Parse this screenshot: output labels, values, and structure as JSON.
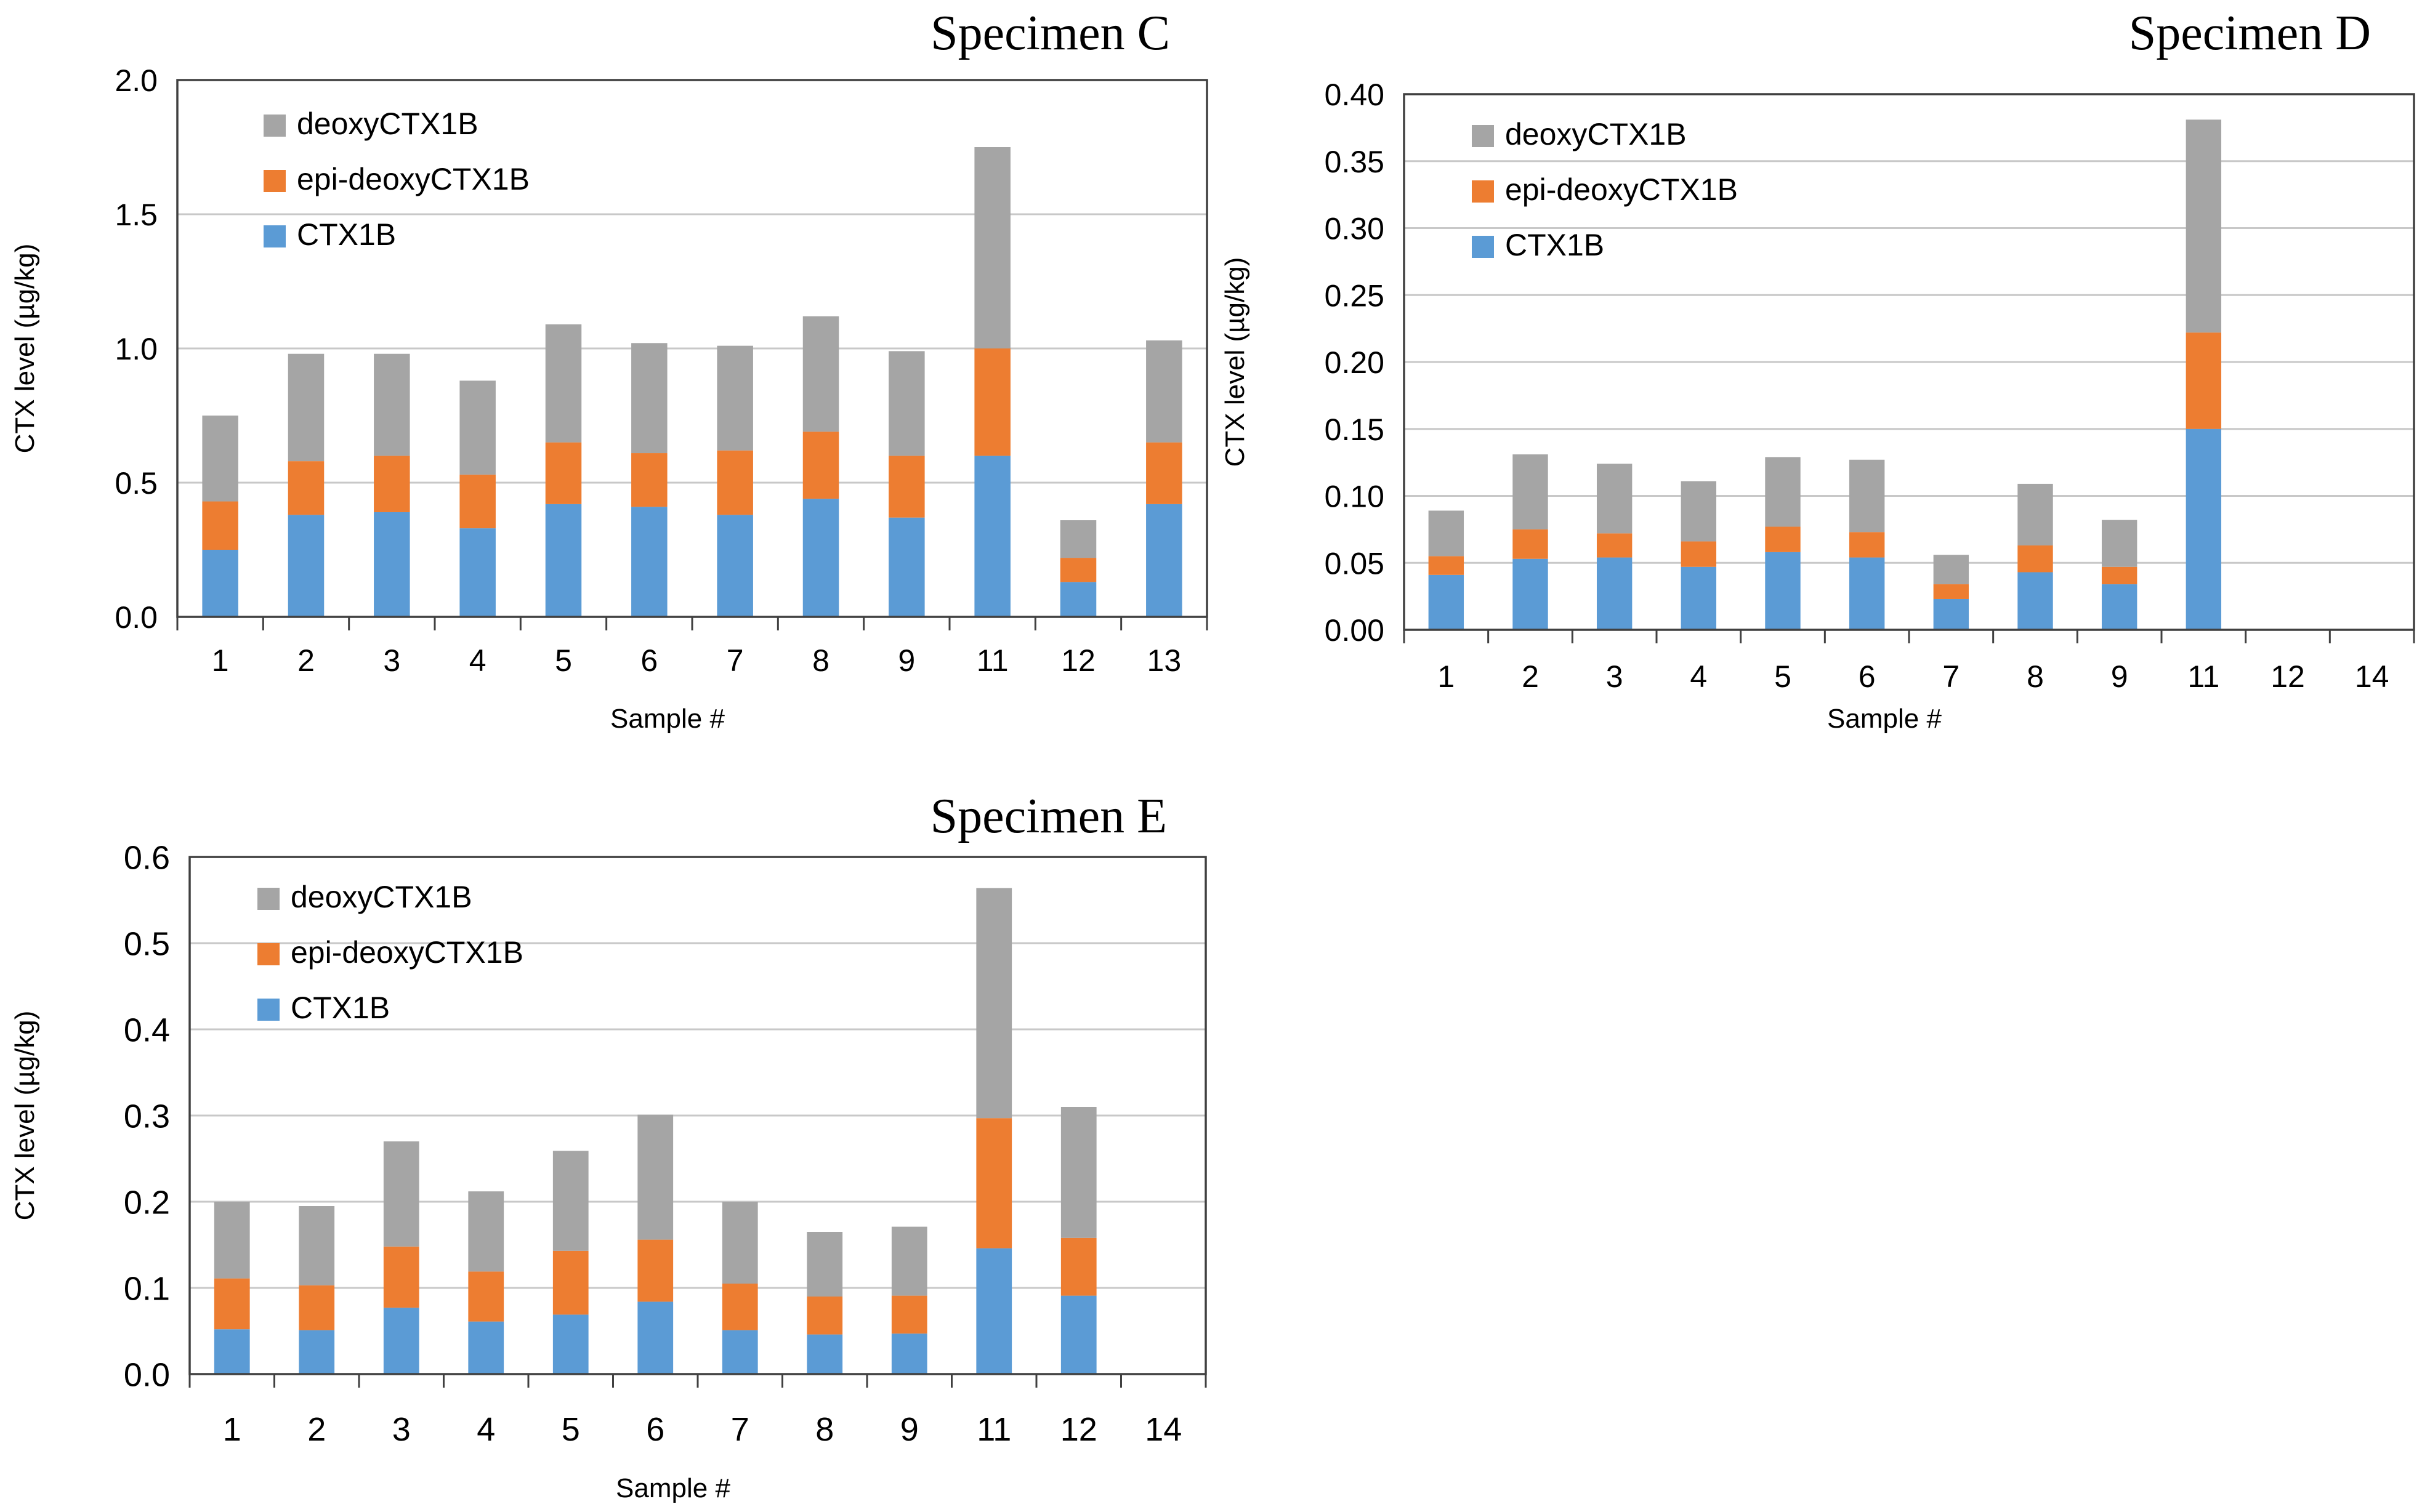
{
  "series_colors": {
    "CTX1B": "#5b9bd5",
    "epi-deoxyCTX1B": "#ed7d31",
    "deoxyCTX1B": "#a5a5a5"
  },
  "chart_data": [
    {
      "type": "bar",
      "stacked": true,
      "title": "Specimen C",
      "xlabel": "Sample #",
      "ylabel": "CTX level (µg/kg)",
      "ylim": [
        0,
        2.0
      ],
      "yticks": [
        "0.0",
        "0.5",
        "1.0",
        "1.5",
        "2.0"
      ],
      "grid": true,
      "legend": [
        "deoxyCTX1B",
        "epi-deoxyCTX1B",
        "CTX1B"
      ],
      "legend_position": "top-left",
      "categories": [
        "1",
        "2",
        "3",
        "4",
        "5",
        "6",
        "7",
        "8",
        "9",
        "11",
        "12",
        "13"
      ],
      "series": [
        {
          "name": "CTX1B",
          "values": [
            0.25,
            0.38,
            0.39,
            0.33,
            0.42,
            0.41,
            0.38,
            0.44,
            0.37,
            0.6,
            0.13,
            0.42
          ]
        },
        {
          "name": "epi-deoxyCTX1B",
          "values": [
            0.18,
            0.2,
            0.21,
            0.2,
            0.23,
            0.2,
            0.24,
            0.25,
            0.23,
            0.4,
            0.09,
            0.23
          ]
        },
        {
          "name": "deoxyCTX1B",
          "values": [
            0.32,
            0.4,
            0.38,
            0.35,
            0.44,
            0.41,
            0.39,
            0.43,
            0.39,
            0.75,
            0.14,
            0.38
          ]
        }
      ]
    },
    {
      "type": "bar",
      "stacked": true,
      "title": "Specimen D",
      "xlabel": "Sample #",
      "ylabel": "CTX level (µg/kg)",
      "ylim": [
        0,
        0.4
      ],
      "yticks": [
        "0.00",
        "0.05",
        "0.10",
        "0.15",
        "0.20",
        "0.25",
        "0.30",
        "0.35",
        "0.40"
      ],
      "grid": true,
      "legend": [
        "deoxyCTX1B",
        "epi-deoxyCTX1B",
        "CTX1B"
      ],
      "legend_position": "top-left",
      "categories": [
        "1",
        "2",
        "3",
        "4",
        "5",
        "6",
        "7",
        "8",
        "9",
        "11",
        "12",
        "14"
      ],
      "series": [
        {
          "name": "CTX1B",
          "values": [
            0.041,
            0.053,
            0.054,
            0.047,
            0.058,
            0.054,
            0.023,
            0.043,
            0.034,
            0.15,
            0,
            0
          ]
        },
        {
          "name": "epi-deoxyCTX1B",
          "values": [
            0.014,
            0.022,
            0.018,
            0.019,
            0.019,
            0.019,
            0.011,
            0.02,
            0.013,
            0.072,
            0,
            0
          ]
        },
        {
          "name": "deoxyCTX1B",
          "values": [
            0.034,
            0.056,
            0.052,
            0.045,
            0.052,
            0.054,
            0.022,
            0.046,
            0.035,
            0.159,
            0,
            0
          ]
        }
      ]
    },
    {
      "type": "bar",
      "stacked": true,
      "title": "Specimen E",
      "xlabel": "Sample #",
      "ylabel": "CTX level (µg/kg)",
      "ylim": [
        0,
        0.6
      ],
      "yticks": [
        "0.0",
        "0.1",
        "0.2",
        "0.3",
        "0.4",
        "0.5",
        "0.6"
      ],
      "grid": true,
      "legend": [
        "deoxyCTX1B",
        "epi-deoxyCTX1B",
        "CTX1B"
      ],
      "legend_position": "top-left",
      "categories": [
        "1",
        "2",
        "3",
        "4",
        "5",
        "6",
        "7",
        "8",
        "9",
        "11",
        "12",
        "14"
      ],
      "series": [
        {
          "name": "CTX1B",
          "values": [
            0.052,
            0.051,
            0.077,
            0.061,
            0.069,
            0.084,
            0.051,
            0.046,
            0.047,
            0.146,
            0.091,
            0
          ]
        },
        {
          "name": "epi-deoxyCTX1B",
          "values": [
            0.059,
            0.052,
            0.071,
            0.058,
            0.074,
            0.072,
            0.054,
            0.044,
            0.044,
            0.151,
            0.067,
            0
          ]
        },
        {
          "name": "deoxyCTX1B",
          "values": [
            0.089,
            0.092,
            0.122,
            0.093,
            0.116,
            0.145,
            0.095,
            0.075,
            0.08,
            0.267,
            0.152,
            0
          ]
        }
      ]
    }
  ]
}
